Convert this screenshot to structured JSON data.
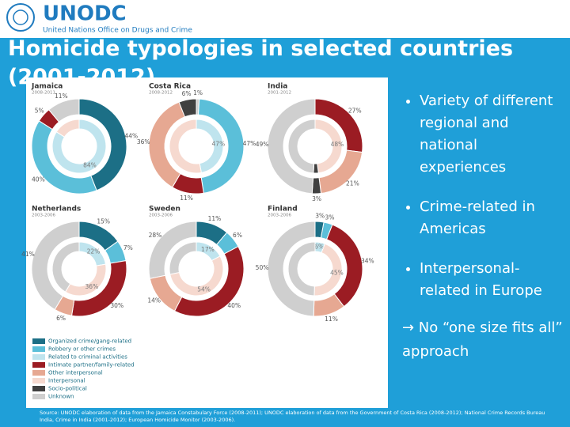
{
  "header": {
    "logo": "UNODC",
    "org": "United Nations Office on Drugs and Crime",
    "title": "Homicide typologies in selected countries (2001-2012)"
  },
  "legend": [
    {
      "name": "Organized crime/gang-related",
      "color": "#1c6f86"
    },
    {
      "name": "Robbery or other crimes",
      "color": "#5bbfd9"
    },
    {
      "name": "Related to criminal activities",
      "color": "#bfe4ee"
    },
    {
      "name": "Intimate partner/family-related",
      "color": "#9b1c23"
    },
    {
      "name": "Other interpersonal",
      "color": "#e6a892"
    },
    {
      "name": "Interpersonal",
      "color": "#f6d9cf"
    },
    {
      "name": "Socio-political",
      "color": "#404040"
    },
    {
      "name": "Unknown",
      "color": "#cfcfcf"
    }
  ],
  "chart_data": [
    {
      "type": "pie",
      "title": "Jamaica",
      "subtitle": "2008-2011",
      "categories": [
        "Organized crime/gang-related",
        "Robbery or other crimes",
        "Intimate partner/family-related",
        "Unknown"
      ],
      "values": [
        44,
        40,
        5,
        11
      ],
      "value_labels": [
        "44%",
        "40%",
        "5%",
        "11%"
      ],
      "inner_categories": [
        "Related to criminal activities",
        "Interpersonal"
      ],
      "inner_values": [
        84,
        16
      ],
      "inner_value_labels": [
        "84%",
        null
      ]
    },
    {
      "type": "pie",
      "title": "Costa Rica",
      "subtitle": "2008-2012",
      "categories": [
        "Unknown",
        "Robbery or other crimes",
        "Intimate partner/family-related",
        "Other interpersonal",
        "Socio-political"
      ],
      "values": [
        1,
        47,
        11,
        36,
        6
      ],
      "value_labels": [
        "1%",
        "47%",
        "11%",
        "36%",
        "6%"
      ],
      "inner_categories": [
        "Related to criminal activities",
        "Interpersonal"
      ],
      "inner_values": [
        47,
        53
      ],
      "inner_value_labels": [
        "47%",
        null
      ]
    },
    {
      "type": "pie",
      "title": "India",
      "subtitle": "2001-2012",
      "categories": [
        "Intimate partner/family-related",
        "Other interpersonal",
        "Socio-political",
        "Unknown"
      ],
      "values": [
        27,
        21,
        3,
        49
      ],
      "value_labels": [
        "27%",
        "21%",
        "3%",
        "49%"
      ],
      "inner_categories": [
        "Interpersonal",
        "Socio-political",
        "Unknown"
      ],
      "inner_values": [
        48,
        3,
        49
      ],
      "inner_value_labels": [
        "48%",
        null,
        null
      ]
    },
    {
      "type": "pie",
      "title": "Netherlands",
      "subtitle": "2003-2006",
      "categories": [
        "Organized crime/gang-related",
        "Robbery or other crimes",
        "Intimate partner/family-related",
        "Other interpersonal",
        "Unknown"
      ],
      "values": [
        15,
        7,
        30,
        6,
        41
      ],
      "value_labels": [
        "15%",
        "7%",
        "30%",
        "6%",
        "41%"
      ],
      "inner_categories": [
        "Related to criminal activities",
        "Interpersonal",
        "Unknown"
      ],
      "inner_values": [
        22,
        36,
        41
      ],
      "inner_value_labels": [
        "22%",
        "36%",
        null
      ]
    },
    {
      "type": "pie",
      "title": "Sweden",
      "subtitle": "2003-2006",
      "categories": [
        "Organized crime/gang-related",
        "Robbery or other crimes",
        "Intimate partner/family-related",
        "Other interpersonal",
        "Unknown"
      ],
      "values": [
        11,
        6,
        40,
        14,
        28
      ],
      "value_labels": [
        "11%",
        "6%",
        "40%",
        "14%",
        "28%"
      ],
      "inner_categories": [
        "Related to criminal activities",
        "Interpersonal",
        "Unknown"
      ],
      "inner_values": [
        17,
        54,
        28
      ],
      "inner_value_labels": [
        "17%",
        "54%",
        null
      ]
    },
    {
      "type": "pie",
      "title": "Finland",
      "subtitle": "2003-2006",
      "categories": [
        "Organized crime/gang-related",
        "Robbery or other crimes",
        "Intimate partner/family-related",
        "Other interpersonal",
        "Unknown"
      ],
      "values": [
        3,
        3,
        34,
        11,
        50
      ],
      "value_labels": [
        "3%",
        "3%",
        "34%",
        "11%",
        "50%"
      ],
      "inner_categories": [
        "Related to criminal activities",
        "Interpersonal",
        "Unknown"
      ],
      "inner_values": [
        6,
        45,
        50
      ],
      "inner_value_labels": [
        "6%",
        "45%",
        null
      ]
    }
  ],
  "bullets": [
    "Variety of different regional and national experiences",
    "Crime-related in Americas",
    "Interpersonal-related in Europe"
  ],
  "conclusion": "→ No “one size fits all” approach",
  "source": "Source: UNODC elaboration of data from the Jamaica Constabulary Force (2008-2011); UNODC elaboration of data from the Government of Costa Rica (2008-2012); National Crime Records Bureau India, Crime in India (2001-2012); European Homicide Monitor (2003-2006)."
}
